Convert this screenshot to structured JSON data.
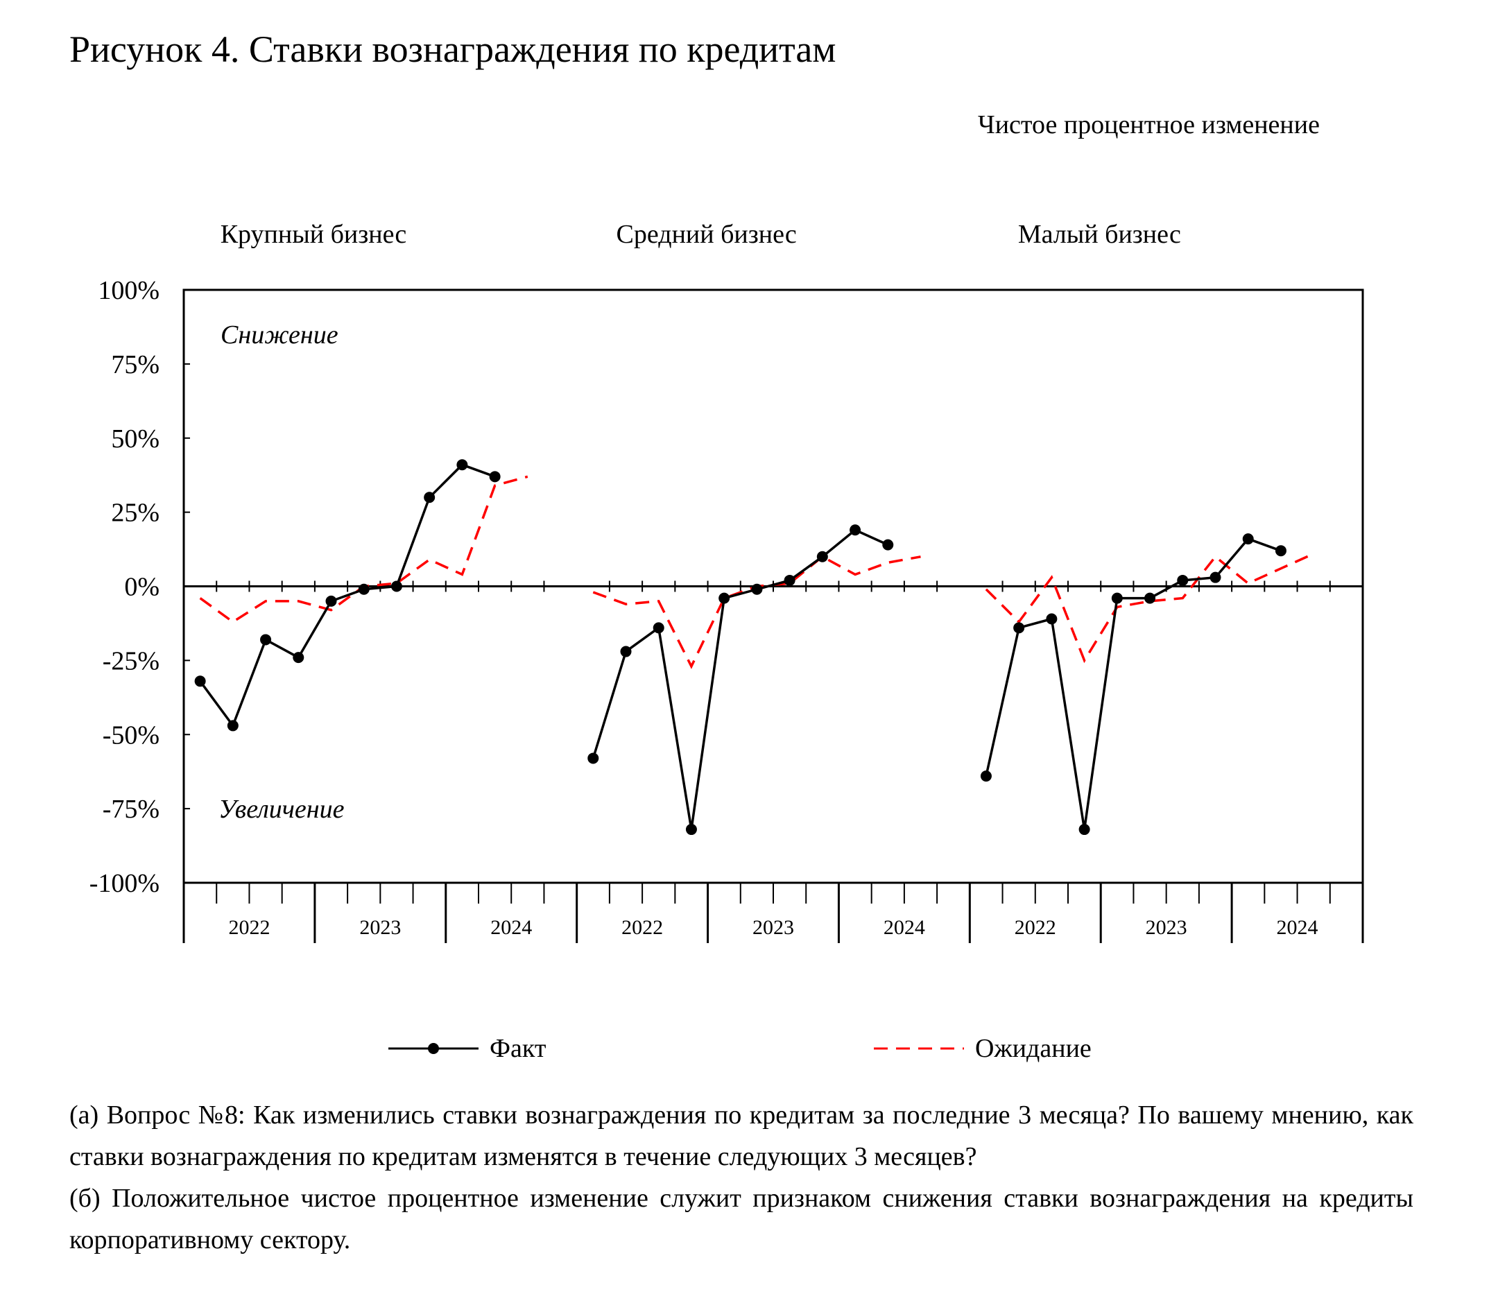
{
  "title": "Рисунок 4. Ставки вознаграждения по кредитам",
  "unit_label": "Чистое процентное изменение",
  "chart_data": {
    "type": "line",
    "ylim": [
      -100,
      100
    ],
    "y_ticks": [
      "100%",
      "75%",
      "50%",
      "25%",
      "0%",
      "-25%",
      "-50%",
      "-75%",
      "-100%"
    ],
    "y_tick_values": [
      100,
      75,
      50,
      25,
      0,
      -25,
      -50,
      -75,
      -100
    ],
    "annotations": {
      "top": "Снижение",
      "bottom": "Увеличение"
    },
    "legend": {
      "fact": "Факт",
      "expectation": "Ожидание",
      "position": "bottom"
    },
    "colors": {
      "fact": "#000000",
      "expectation": "#ff0000"
    },
    "grid": false,
    "panels": [
      {
        "name": "Крупный бизнес",
        "years": [
          "2022",
          "2023",
          "2024"
        ],
        "x": [
          "Q1 2022",
          "Q2 2022",
          "Q3 2022",
          "Q4 2022",
          "Q1 2023",
          "Q2 2023",
          "Q3 2023",
          "Q4 2023",
          "Q1 2024",
          "Q2 2024",
          "Q3 2024"
        ],
        "series": [
          {
            "name": "Факт",
            "values": [
              -32,
              -47,
              -18,
              -24,
              -5,
              -1,
              0,
              30,
              41,
              37,
              null
            ]
          },
          {
            "name": "Ожидание",
            "values": [
              -4,
              -12,
              -5,
              -5,
              -8,
              0,
              1,
              9,
              4,
              34,
              37
            ]
          }
        ]
      },
      {
        "name": "Средний бизнес",
        "years": [
          "2022",
          "2023",
          "2024"
        ],
        "x": [
          "Q1 2022",
          "Q2 2022",
          "Q3 2022",
          "Q4 2022",
          "Q1 2023",
          "Q2 2023",
          "Q3 2023",
          "Q4 2023",
          "Q1 2024",
          "Q2 2024",
          "Q3 2024"
        ],
        "series": [
          {
            "name": "Факт",
            "values": [
              -58,
              -22,
              -14,
              -82,
              -4,
              -1,
              2,
              10,
              19,
              14,
              null
            ]
          },
          {
            "name": "Ожидание",
            "values": [
              -2,
              -6,
              -5,
              -27,
              -4,
              0,
              1,
              10,
              4,
              8,
              10
            ]
          }
        ]
      },
      {
        "name": "Малый бизнес",
        "years": [
          "2022",
          "2023",
          "2024"
        ],
        "x": [
          "Q1 2022",
          "Q2 2022",
          "Q3 2022",
          "Q4 2022",
          "Q1 2023",
          "Q2 2023",
          "Q3 2023",
          "Q4 2023",
          "Q1 2024",
          "Q2 2024",
          "Q3 2024"
        ],
        "series": [
          {
            "name": "Факт",
            "values": [
              -64,
              -14,
              -11,
              -82,
              -4,
              -4,
              2,
              3,
              16,
              12,
              null
            ]
          },
          {
            "name": "Ожидание",
            "values": [
              -1,
              -12,
              3,
              -25,
              -7,
              -5,
              -4,
              10,
              1,
              6,
              11
            ]
          }
        ]
      }
    ]
  },
  "notes": [
    "(а) Вопрос №8: Как изменились ставки вознаграждения по кредитам за последние 3 месяца? По вашему мнению, как ставки вознаграждения по кредитам изменятся в течение следующих 3 месяцев?",
    "(б) Положительное чистое процентное изменение служит признаком снижения ставки вознаграждения на кредиты корпоративному сектору."
  ]
}
